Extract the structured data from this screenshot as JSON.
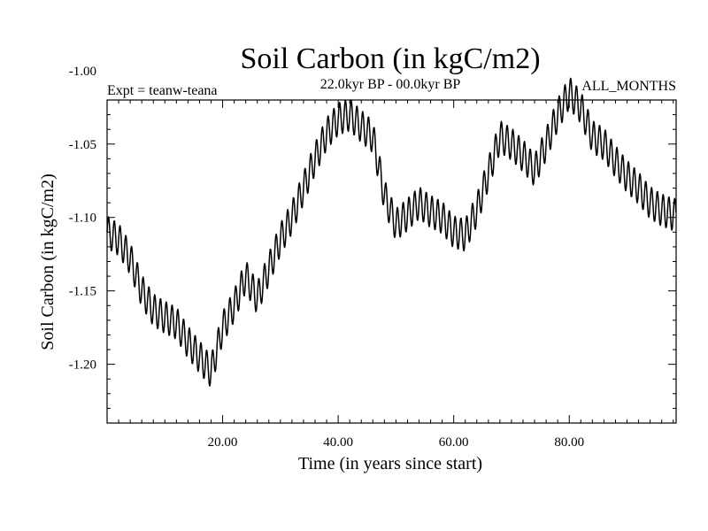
{
  "chart_data": {
    "type": "line",
    "title": "Soil Carbon (in kgC/m2)",
    "subtitle": "22.0kyr BP - 00.0kyr BP",
    "experiment": "Expt = teanw-teana",
    "months": "ALL_MONTHS",
    "xlabel": "Time (in years since start)",
    "ylabel": "Soil Carbon (in kgC/m2)",
    "xlim": [
      0,
      98.5
    ],
    "ylim": [
      -1.24,
      -1.02
    ],
    "x_ticks": [
      20,
      40,
      60,
      80
    ],
    "x_tick_labels": [
      "20.00",
      "40.00",
      "60.00",
      "80.00"
    ],
    "y_ticks": [
      -1.0,
      -1.05,
      -1.1,
      -1.15,
      -1.2
    ],
    "y_tick_labels": [
      "-1.00",
      "-1.05",
      "-1.10",
      "-1.15",
      "-1.20"
    ],
    "grid": false,
    "series": [
      {
        "name": "Soil Carbon",
        "color": "#000000",
        "x": [
          0,
          2,
          4,
          6,
          8,
          10,
          12,
          14,
          16,
          18,
          20,
          22,
          24,
          26,
          28,
          30,
          32,
          34,
          36,
          38,
          40,
          42,
          44,
          46,
          48,
          50,
          52,
          54,
          56,
          58,
          60,
          62,
          64,
          66,
          68,
          70,
          72,
          74,
          76,
          78,
          80,
          82,
          84,
          86,
          88,
          90,
          92,
          94,
          96,
          98
        ],
        "values": [
          -1.11,
          -1.115,
          -1.128,
          -1.15,
          -1.163,
          -1.168,
          -1.172,
          -1.185,
          -1.195,
          -1.205,
          -1.175,
          -1.16,
          -1.14,
          -1.155,
          -1.135,
          -1.115,
          -1.1,
          -1.08,
          -1.06,
          -1.043,
          -1.033,
          -1.03,
          -1.038,
          -1.045,
          -1.085,
          -1.105,
          -1.098,
          -1.09,
          -1.096,
          -1.1,
          -1.11,
          -1.112,
          -1.095,
          -1.07,
          -1.045,
          -1.05,
          -1.058,
          -1.068,
          -1.05,
          -1.03,
          -1.015,
          -1.025,
          -1.045,
          -1.05,
          -1.062,
          -1.072,
          -1.08,
          -1.09,
          -1.095,
          -1.098
        ],
        "oscillation": {
          "period": 1.0,
          "amplitude": 0.011
        }
      }
    ]
  }
}
